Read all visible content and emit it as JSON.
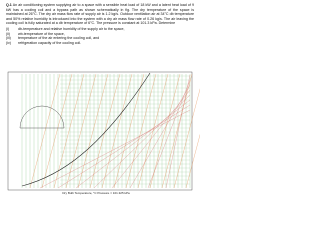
{
  "question": {
    "number": "Q.1",
    "text": "An air conditioning system supplying air to a space with a sensible heat load of 18 kW and a latent heat load of 9 kW has a cooling coil and a bypass path as shown schematically in fig. The dry temperature of the space is maintained at 26°C. The dry air mass flow rate of supply air is 1.2 kg/s. Outdoor ventilation air at 34°C db temperature and 50% relative humidity is introduced into the system with a dry air mass flow rate of 0.26 kg/s. The air leaving the cooling coil is fully saturated at a db temperature of 6°C. The pressure is constant at 101.3 kPa. Determine",
    "items": [
      {
        "marker": "(i)",
        "text": "db-temperature and relative humidity of the supply air to the space,"
      },
      {
        "marker": "(ii)",
        "text": "wb-temperature of the space,"
      },
      {
        "marker": "(iii)",
        "text": "temperature of the air entering the cooling coil, and"
      },
      {
        "marker": "(iv)",
        "text": "refrigeration capacity of the cooling coil."
      }
    ]
  },
  "chart": {
    "x_label": "Dry Bulb Temperature, °C   Pressure = 101.325 kPa"
  }
}
